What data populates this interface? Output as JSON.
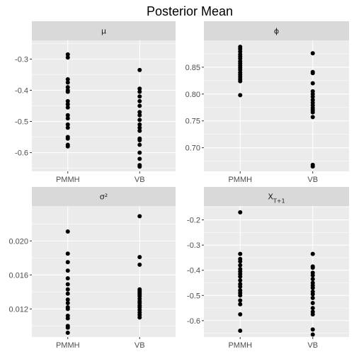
{
  "chart_data": {
    "type": "scatter",
    "title": "Posterior Mean",
    "background": "#ffffff",
    "panel_color": "#ebebeb",
    "strip_color": "#d9d9d9",
    "grid_color": "#ffffff",
    "point_color": "#000000",
    "grid": true,
    "categories": [
      "PMMH",
      "VB"
    ],
    "facets": [
      {
        "strip_label": "μ",
        "ylim": [
          -0.66,
          -0.24
        ],
        "yticks": [
          -0.3,
          -0.4,
          -0.5,
          -0.6
        ],
        "ytick_labels": [
          "-0.3",
          "-0.4",
          "-0.5",
          "-0.6"
        ],
        "series": [
          {
            "x": "PMMH",
            "values": [
              -0.285,
              -0.295,
              -0.365,
              -0.375,
              -0.39,
              -0.4,
              -0.405,
              -0.435,
              -0.445,
              -0.455,
              -0.48,
              -0.49,
              -0.51,
              -0.52,
              -0.55,
              -0.555,
              -0.575,
              -0.58
            ]
          },
          {
            "x": "VB",
            "values": [
              -0.335,
              -0.395,
              -0.405,
              -0.42,
              -0.435,
              -0.45,
              -0.47,
              -0.48,
              -0.495,
              -0.51,
              -0.52,
              -0.53,
              -0.555,
              -0.56,
              -0.575,
              -0.6,
              -0.62,
              -0.64,
              -0.645
            ]
          }
        ]
      },
      {
        "strip_label": "ϕ",
        "ylim": [
          0.656,
          0.9
        ],
        "yticks": [
          0.85,
          0.8,
          0.75,
          0.7
        ],
        "ytick_labels": [
          "0.85",
          "0.80",
          "0.75",
          "0.70"
        ],
        "series": [
          {
            "x": "PMMH",
            "values": [
              0.888,
              0.884,
              0.879,
              0.874,
              0.87,
              0.866,
              0.861,
              0.857,
              0.853,
              0.849,
              0.845,
              0.84,
              0.836,
              0.832,
              0.828,
              0.824,
              0.798
            ]
          },
          {
            "x": "VB",
            "values": [
              0.876,
              0.841,
              0.839,
              0.82,
              0.805,
              0.8,
              0.795,
              0.789,
              0.784,
              0.779,
              0.774,
              0.77,
              0.766,
              0.757,
              0.668,
              0.665
            ]
          }
        ]
      },
      {
        "strip_label": "σ²",
        "ylim": [
          0.0087,
          0.0241
        ],
        "yticks": [
          0.02,
          0.016,
          0.012
        ],
        "ytick_labels": [
          "0.020",
          "0.016",
          "0.012"
        ],
        "series": [
          {
            "x": "PMMH",
            "values": [
              0.0211,
              0.0185,
              0.0175,
              0.0165,
              0.0156,
              0.0149,
              0.0143,
              0.0138,
              0.0131,
              0.0127,
              0.0122,
              0.012,
              0.0112,
              0.0109,
              0.01,
              0.0098,
              0.0092
            ]
          },
          {
            "x": "VB",
            "values": [
              0.0229,
              0.0181,
              0.0172,
              0.0143,
              0.0141,
              0.0139,
              0.0137,
              0.0135,
              0.0132,
              0.0129,
              0.0127,
              0.0124,
              0.0122,
              0.0119,
              0.0116,
              0.0113,
              0.011
            ]
          }
        ]
      },
      {
        "strip_label": "X",
        "strip_subscript": "T+1",
        "ylim": [
          -0.665,
          -0.145
        ],
        "yticks": [
          -0.2,
          -0.3,
          -0.4,
          -0.5,
          -0.6
        ],
        "ytick_labels": [
          "-0.2",
          "-0.3",
          "-0.4",
          "-0.5",
          "-0.6"
        ],
        "series": [
          {
            "x": "PMMH",
            "values": [
              -0.17,
              -0.335,
              -0.355,
              -0.365,
              -0.38,
              -0.395,
              -0.405,
              -0.415,
              -0.425,
              -0.44,
              -0.455,
              -0.465,
              -0.48,
              -0.49,
              -0.5,
              -0.52,
              -0.535,
              -0.575,
              -0.64
            ]
          },
          {
            "x": "VB",
            "values": [
              -0.335,
              -0.385,
              -0.39,
              -0.41,
              -0.42,
              -0.435,
              -0.45,
              -0.46,
              -0.47,
              -0.485,
              -0.495,
              -0.51,
              -0.53,
              -0.55,
              -0.565,
              -0.575,
              -0.635,
              -0.655
            ]
          }
        ]
      }
    ]
  }
}
